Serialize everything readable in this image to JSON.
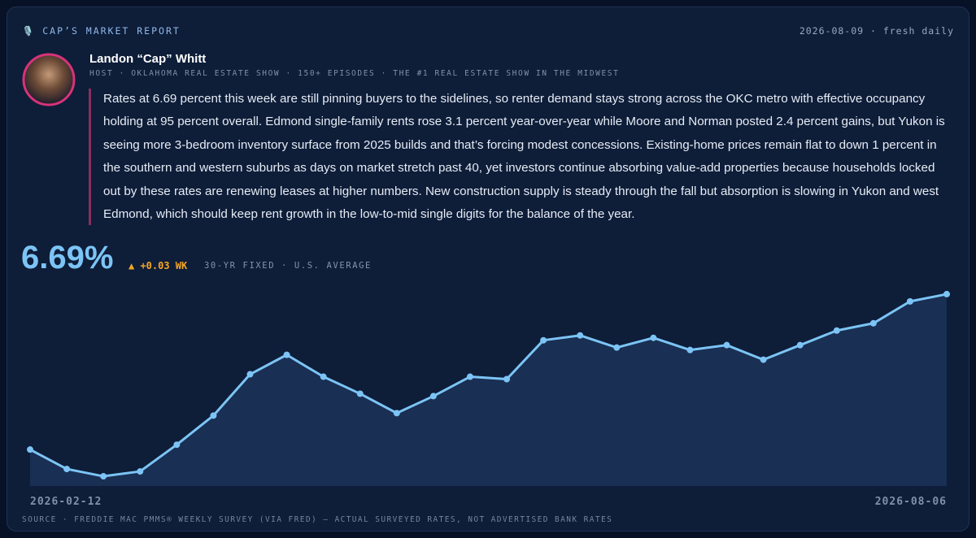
{
  "header": {
    "title": "CAP’S MARKET REPORT",
    "date": "2026-08-09 · fresh daily"
  },
  "host": {
    "name": "Landon “Cap” Whitt",
    "tagline": "HOST · OKLAHOMA REAL ESTATE SHOW · 150+ EPISODES · THE #1 REAL ESTATE SHOW IN THE MIDWEST"
  },
  "commentary": "Rates at 6.69 percent this week are still pinning buyers to the sidelines, so renter demand stays strong across the OKC metro with effective occupancy holding at 95 percent overall. Edmond single-family rents rose 3.1 percent year-over-year while Moore and Norman posted 2.4 percent gains, but Yukon is seeing more 3-bedroom inventory surface from 2025 builds and that’s forcing modest concessions. Existing-home prices remain flat to down 1 percent in the southern and western suburbs as days on market stretch past 40, yet investors continue absorbing value-add properties because households locked out by these rates are renewing leases at higher numbers. New construction supply is steady through the fall but absorption is slowing in Yukon and west Edmond, which should keep rent growth in the low-to-mid single digits for the balance of the year.",
  "headline": {
    "value": "6.69%",
    "change": "▲ +0.03 WK",
    "label": "30-YR FIXED · U.S. AVERAGE"
  },
  "chart_data": {
    "type": "line",
    "categories": [
      "2026-02-12",
      null,
      null,
      null,
      null,
      null,
      null,
      null,
      null,
      null,
      null,
      null,
      null,
      null,
      null,
      null,
      null,
      null,
      null,
      null,
      null,
      null,
      null,
      null,
      null,
      "2026-08-06"
    ],
    "values": [
      6.05,
      5.97,
      5.94,
      5.96,
      6.07,
      6.19,
      6.36,
      6.44,
      6.35,
      6.28,
      6.2,
      6.27,
      6.35,
      6.34,
      6.5,
      6.52,
      6.47,
      6.51,
      6.46,
      6.48,
      6.42,
      6.48,
      6.54,
      6.57,
      6.66,
      6.69
    ],
    "color": "#7cc4f5",
    "area": true,
    "ylim": [
      5.9,
      6.76
    ]
  },
  "footer": "SOURCE · FREDDIE MAC PMMS® WEEKLY SURVEY (VIA FRED) — ACTUAL SURVEYED RATES, NOT ADVERTISED BANK RATES"
}
